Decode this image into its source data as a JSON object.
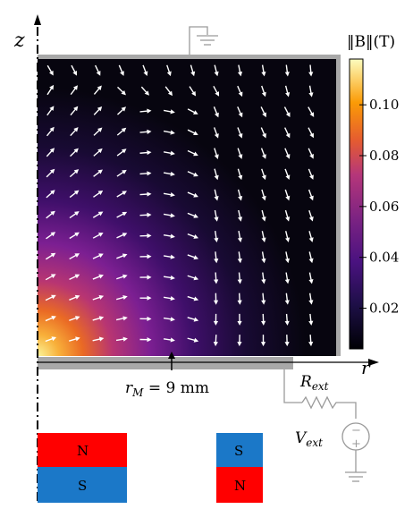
{
  "axes": {
    "z_label": "z",
    "r_label": "r"
  },
  "colorbar": {
    "title": "‖B‖(T)",
    "ticks": [
      "0.10",
      "0.08",
      "0.06",
      "0.04",
      "0.02"
    ],
    "tick_values": [
      0.1,
      0.08,
      0.06,
      0.04,
      0.02
    ],
    "range": [
      0.004,
      0.118
    ]
  },
  "annotations": {
    "radius": "r_M = 9 mm",
    "resistor": "R_ext",
    "source": "V_ext",
    "source_plus": "+",
    "source_minus": "−"
  },
  "magnets": {
    "left": {
      "top": "N",
      "bottom": "S"
    },
    "right": {
      "top": "S",
      "bottom": "N"
    }
  },
  "colors": {
    "north": "#ff0000",
    "south": "#1b78c8",
    "plate": "#a8a8a8",
    "wire": "#9a9a9a"
  }
}
